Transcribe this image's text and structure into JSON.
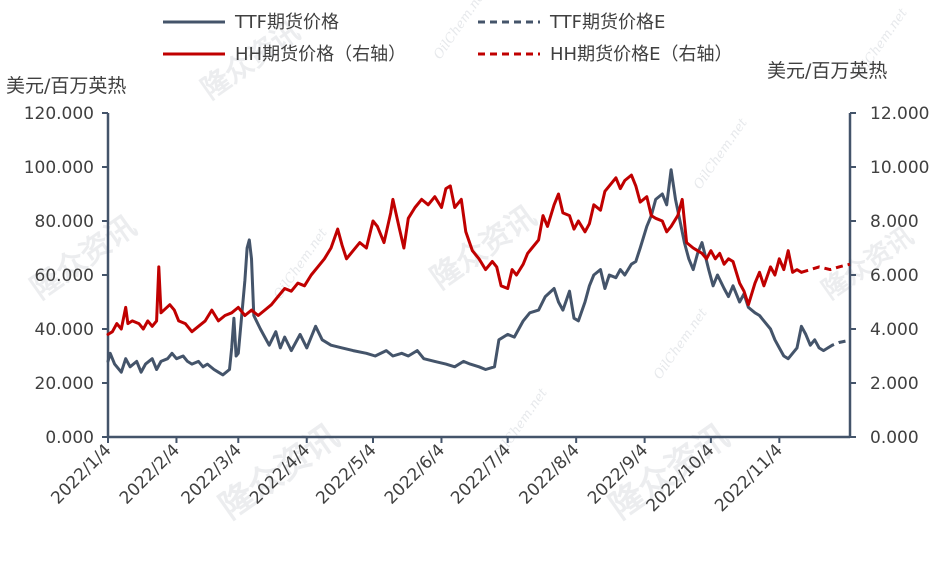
{
  "chart_data": {
    "type": "line",
    "left_axis": {
      "unit_label": "美元/百万英热",
      "ylim": [
        0,
        120
      ],
      "ticks": [
        "0.000",
        "20.000",
        "40.000",
        "60.000",
        "80.000",
        "100.000",
        "120.000"
      ]
    },
    "right_axis": {
      "unit_label": "美元/百万英热",
      "ylim": [
        0,
        12
      ],
      "ticks": [
        "0.000",
        "2.000",
        "4.000",
        "6.000",
        "8.000",
        "10.000",
        "12.000"
      ]
    },
    "x_ticks": [
      "2022/1/4",
      "2022/2/4",
      "2022/3/4",
      "2022/4/4",
      "2022/5/4",
      "2022/6/4",
      "2022/7/4",
      "2022/8/4",
      "2022/9/4",
      "2022/10/4",
      "2022/11/4"
    ],
    "x_range": [
      "2022-01-04",
      "2022-12-06"
    ],
    "grid": false,
    "legend_position": "top",
    "watermark": {
      "text": "隆众资讯",
      "subtext": "OilChem.net"
    },
    "series": [
      {
        "name": "TTF期货价格",
        "axis": "left",
        "style": "solid",
        "color": "#44546a",
        "points": [
          [
            "2022-01-04",
            28
          ],
          [
            "2022-01-05",
            31
          ],
          [
            "2022-01-07",
            27
          ],
          [
            "2022-01-10",
            24
          ],
          [
            "2022-01-12",
            29
          ],
          [
            "2022-01-14",
            26
          ],
          [
            "2022-01-17",
            28
          ],
          [
            "2022-01-19",
            24
          ],
          [
            "2022-01-21",
            27
          ],
          [
            "2022-01-24",
            29
          ],
          [
            "2022-01-26",
            25
          ],
          [
            "2022-01-28",
            28
          ],
          [
            "2022-01-31",
            29
          ],
          [
            "2022-02-02",
            31
          ],
          [
            "2022-02-04",
            29
          ],
          [
            "2022-02-07",
            30
          ],
          [
            "2022-02-09",
            28
          ],
          [
            "2022-02-11",
            27
          ],
          [
            "2022-02-14",
            28
          ],
          [
            "2022-02-16",
            26
          ],
          [
            "2022-02-18",
            27
          ],
          [
            "2022-02-21",
            25
          ],
          [
            "2022-02-23",
            24
          ],
          [
            "2022-02-25",
            23
          ],
          [
            "2022-02-28",
            25
          ],
          [
            "2022-03-01",
            33
          ],
          [
            "2022-03-02",
            44
          ],
          [
            "2022-03-03",
            30
          ],
          [
            "2022-03-04",
            31
          ],
          [
            "2022-03-07",
            58
          ],
          [
            "2022-03-08",
            70
          ],
          [
            "2022-03-09",
            73
          ],
          [
            "2022-03-10",
            66
          ],
          [
            "2022-03-11",
            45
          ],
          [
            "2022-03-14",
            40
          ],
          [
            "2022-03-16",
            37
          ],
          [
            "2022-03-18",
            34
          ],
          [
            "2022-03-21",
            39
          ],
          [
            "2022-03-23",
            33
          ],
          [
            "2022-03-25",
            37
          ],
          [
            "2022-03-28",
            32
          ],
          [
            "2022-03-30",
            35
          ],
          [
            "2022-04-01",
            38
          ],
          [
            "2022-04-04",
            33
          ],
          [
            "2022-04-06",
            37
          ],
          [
            "2022-04-08",
            41
          ],
          [
            "2022-04-11",
            36
          ],
          [
            "2022-04-15",
            34
          ],
          [
            "2022-04-20",
            33
          ],
          [
            "2022-04-25",
            32
          ],
          [
            "2022-05-01",
            31
          ],
          [
            "2022-05-05",
            30
          ],
          [
            "2022-05-10",
            32
          ],
          [
            "2022-05-13",
            30
          ],
          [
            "2022-05-17",
            31
          ],
          [
            "2022-05-20",
            30
          ],
          [
            "2022-05-24",
            32
          ],
          [
            "2022-05-27",
            29
          ],
          [
            "2022-06-01",
            28
          ],
          [
            "2022-06-06",
            27
          ],
          [
            "2022-06-10",
            26
          ],
          [
            "2022-06-14",
            28
          ],
          [
            "2022-06-17",
            27
          ],
          [
            "2022-06-21",
            26
          ],
          [
            "2022-06-24",
            25
          ],
          [
            "2022-06-28",
            26
          ],
          [
            "2022-06-30",
            36
          ],
          [
            "2022-07-04",
            38
          ],
          [
            "2022-07-07",
            37
          ],
          [
            "2022-07-11",
            43
          ],
          [
            "2022-07-14",
            46
          ],
          [
            "2022-07-18",
            47
          ],
          [
            "2022-07-21",
            52
          ],
          [
            "2022-07-25",
            55
          ],
          [
            "2022-07-27",
            50
          ],
          [
            "2022-07-29",
            47
          ],
          [
            "2022-08-01",
            54
          ],
          [
            "2022-08-03",
            44
          ],
          [
            "2022-08-05",
            43
          ],
          [
            "2022-08-08",
            50
          ],
          [
            "2022-08-10",
            56
          ],
          [
            "2022-08-12",
            60
          ],
          [
            "2022-08-15",
            62
          ],
          [
            "2022-08-17",
            55
          ],
          [
            "2022-08-19",
            60
          ],
          [
            "2022-08-22",
            59
          ],
          [
            "2022-08-24",
            62
          ],
          [
            "2022-08-26",
            60
          ],
          [
            "2022-08-29",
            64
          ],
          [
            "2022-08-31",
            65
          ],
          [
            "2022-09-02",
            70
          ],
          [
            "2022-09-05",
            78
          ],
          [
            "2022-09-07",
            82
          ],
          [
            "2022-09-09",
            88
          ],
          [
            "2022-09-12",
            90
          ],
          [
            "2022-09-14",
            86
          ],
          [
            "2022-09-16",
            99
          ],
          [
            "2022-09-18",
            88
          ],
          [
            "2022-09-20",
            80
          ],
          [
            "2022-09-22",
            72
          ],
          [
            "2022-09-24",
            66
          ],
          [
            "2022-09-26",
            62
          ],
          [
            "2022-09-28",
            68
          ],
          [
            "2022-09-30",
            72
          ],
          [
            "2022-10-03",
            62
          ],
          [
            "2022-10-05",
            56
          ],
          [
            "2022-10-07",
            60
          ],
          [
            "2022-10-10",
            55
          ],
          [
            "2022-10-12",
            52
          ],
          [
            "2022-10-14",
            56
          ],
          [
            "2022-10-17",
            50
          ],
          [
            "2022-10-19",
            53
          ],
          [
            "2022-10-21",
            48
          ],
          [
            "2022-10-24",
            46
          ],
          [
            "2022-10-26",
            45
          ],
          [
            "2022-10-28",
            43
          ],
          [
            "2022-10-31",
            40
          ],
          [
            "2022-11-02",
            36
          ],
          [
            "2022-11-04",
            33
          ],
          [
            "2022-11-06",
            30
          ],
          [
            "2022-11-08",
            29
          ],
          [
            "2022-11-10",
            31
          ],
          [
            "2022-11-12",
            33
          ],
          [
            "2022-11-14",
            41
          ],
          [
            "2022-11-16",
            38
          ],
          [
            "2022-11-18",
            34
          ],
          [
            "2022-11-20",
            36
          ],
          [
            "2022-11-22",
            33
          ],
          [
            "2022-11-24",
            32
          ],
          [
            "2022-11-26",
            33
          ]
        ]
      },
      {
        "name": "TTF期货价格E",
        "axis": "left",
        "style": "dashed",
        "color": "#44546a",
        "points": [
          [
            "2022-11-26",
            33
          ],
          [
            "2022-11-28",
            34
          ],
          [
            "2022-12-01",
            35
          ],
          [
            "2022-12-04",
            35.5
          ],
          [
            "2022-12-06",
            36.5
          ]
        ]
      },
      {
        "name": "HH期货价格（右轴）",
        "axis": "right",
        "style": "solid",
        "color": "#c00000",
        "points": [
          [
            "2022-01-04",
            3.8
          ],
          [
            "2022-01-06",
            3.9
          ],
          [
            "2022-01-08",
            4.2
          ],
          [
            "2022-01-10",
            4.0
          ],
          [
            "2022-01-12",
            4.8
          ],
          [
            "2022-01-13",
            4.2
          ],
          [
            "2022-01-15",
            4.3
          ],
          [
            "2022-01-18",
            4.2
          ],
          [
            "2022-01-20",
            4.0
          ],
          [
            "2022-01-22",
            4.3
          ],
          [
            "2022-01-24",
            4.1
          ],
          [
            "2022-01-26",
            4.3
          ],
          [
            "2022-01-27",
            6.3
          ],
          [
            "2022-01-28",
            4.6
          ],
          [
            "2022-02-01",
            4.9
          ],
          [
            "2022-02-03",
            4.7
          ],
          [
            "2022-02-05",
            4.3
          ],
          [
            "2022-02-08",
            4.2
          ],
          [
            "2022-02-11",
            3.9
          ],
          [
            "2022-02-14",
            4.1
          ],
          [
            "2022-02-17",
            4.3
          ],
          [
            "2022-02-20",
            4.7
          ],
          [
            "2022-02-23",
            4.3
          ],
          [
            "2022-02-26",
            4.5
          ],
          [
            "2022-03-01",
            4.6
          ],
          [
            "2022-03-04",
            4.8
          ],
          [
            "2022-03-07",
            4.5
          ],
          [
            "2022-03-10",
            4.7
          ],
          [
            "2022-03-13",
            4.5
          ],
          [
            "2022-03-16",
            4.7
          ],
          [
            "2022-03-19",
            4.9
          ],
          [
            "2022-03-22",
            5.2
          ],
          [
            "2022-03-25",
            5.5
          ],
          [
            "2022-03-28",
            5.4
          ],
          [
            "2022-03-31",
            5.7
          ],
          [
            "2022-04-03",
            5.6
          ],
          [
            "2022-04-06",
            6.0
          ],
          [
            "2022-04-09",
            6.3
          ],
          [
            "2022-04-12",
            6.6
          ],
          [
            "2022-04-15",
            7.0
          ],
          [
            "2022-04-18",
            7.7
          ],
          [
            "2022-04-20",
            7.1
          ],
          [
            "2022-04-22",
            6.6
          ],
          [
            "2022-04-25",
            6.9
          ],
          [
            "2022-04-28",
            7.2
          ],
          [
            "2022-05-01",
            7.0
          ],
          [
            "2022-05-04",
            8.0
          ],
          [
            "2022-05-06",
            7.8
          ],
          [
            "2022-05-09",
            7.2
          ],
          [
            "2022-05-12",
            8.3
          ],
          [
            "2022-05-13",
            8.8
          ],
          [
            "2022-05-16",
            7.7
          ],
          [
            "2022-05-18",
            7.0
          ],
          [
            "2022-05-20",
            8.1
          ],
          [
            "2022-05-23",
            8.5
          ],
          [
            "2022-05-26",
            8.8
          ],
          [
            "2022-05-29",
            8.6
          ],
          [
            "2022-06-01",
            8.9
          ],
          [
            "2022-06-04",
            8.5
          ],
          [
            "2022-06-06",
            9.2
          ],
          [
            "2022-06-08",
            9.3
          ],
          [
            "2022-06-10",
            8.5
          ],
          [
            "2022-06-13",
            8.8
          ],
          [
            "2022-06-15",
            7.6
          ],
          [
            "2022-06-18",
            6.9
          ],
          [
            "2022-06-21",
            6.6
          ],
          [
            "2022-06-24",
            6.2
          ],
          [
            "2022-06-27",
            6.5
          ],
          [
            "2022-06-29",
            6.3
          ],
          [
            "2022-07-01",
            5.6
          ],
          [
            "2022-07-04",
            5.5
          ],
          [
            "2022-07-06",
            6.2
          ],
          [
            "2022-07-08",
            6.0
          ],
          [
            "2022-07-11",
            6.4
          ],
          [
            "2022-07-13",
            6.8
          ],
          [
            "2022-07-15",
            7.0
          ],
          [
            "2022-07-18",
            7.3
          ],
          [
            "2022-07-20",
            8.2
          ],
          [
            "2022-07-22",
            7.8
          ],
          [
            "2022-07-25",
            8.6
          ],
          [
            "2022-07-27",
            9.0
          ],
          [
            "2022-07-29",
            8.3
          ],
          [
            "2022-08-01",
            8.2
          ],
          [
            "2022-08-03",
            7.7
          ],
          [
            "2022-08-05",
            8.0
          ],
          [
            "2022-08-08",
            7.6
          ],
          [
            "2022-08-10",
            7.9
          ],
          [
            "2022-08-12",
            8.6
          ],
          [
            "2022-08-15",
            8.4
          ],
          [
            "2022-08-17",
            9.1
          ],
          [
            "2022-08-19",
            9.3
          ],
          [
            "2022-08-22",
            9.6
          ],
          [
            "2022-08-24",
            9.2
          ],
          [
            "2022-08-26",
            9.5
          ],
          [
            "2022-08-29",
            9.7
          ],
          [
            "2022-08-31",
            9.3
          ],
          [
            "2022-09-02",
            8.7
          ],
          [
            "2022-09-05",
            8.9
          ],
          [
            "2022-09-07",
            8.2
          ],
          [
            "2022-09-09",
            8.1
          ],
          [
            "2022-09-12",
            8.0
          ],
          [
            "2022-09-14",
            7.6
          ],
          [
            "2022-09-16",
            7.8
          ],
          [
            "2022-09-19",
            8.2
          ],
          [
            "2022-09-21",
            8.8
          ],
          [
            "2022-09-23",
            7.2
          ],
          [
            "2022-09-26",
            7.0
          ],
          [
            "2022-09-28",
            6.9
          ],
          [
            "2022-09-30",
            6.8
          ],
          [
            "2022-10-02",
            6.6
          ],
          [
            "2022-10-04",
            6.9
          ],
          [
            "2022-10-06",
            6.6
          ],
          [
            "2022-10-08",
            6.8
          ],
          [
            "2022-10-10",
            6.4
          ],
          [
            "2022-10-12",
            6.6
          ],
          [
            "2022-10-14",
            6.5
          ],
          [
            "2022-10-17",
            5.7
          ],
          [
            "2022-10-19",
            5.4
          ],
          [
            "2022-10-21",
            4.9
          ],
          [
            "2022-10-24",
            5.7
          ],
          [
            "2022-10-26",
            6.1
          ],
          [
            "2022-10-28",
            5.6
          ],
          [
            "2022-10-31",
            6.3
          ],
          [
            "2022-11-02",
            6.0
          ],
          [
            "2022-11-04",
            6.6
          ],
          [
            "2022-11-06",
            6.2
          ],
          [
            "2022-11-08",
            6.9
          ],
          [
            "2022-11-10",
            6.1
          ],
          [
            "2022-11-12",
            6.2
          ],
          [
            "2022-11-14",
            6.1
          ]
        ]
      },
      {
        "name": "HH期货价格E（右轴）",
        "axis": "right",
        "style": "dashed",
        "color": "#c00000",
        "points": [
          [
            "2022-11-14",
            6.1
          ],
          [
            "2022-11-18",
            6.2
          ],
          [
            "2022-11-22",
            6.3
          ],
          [
            "2022-11-27",
            6.2
          ],
          [
            "2022-12-01",
            6.3
          ],
          [
            "2022-12-06",
            6.4
          ]
        ]
      }
    ]
  }
}
